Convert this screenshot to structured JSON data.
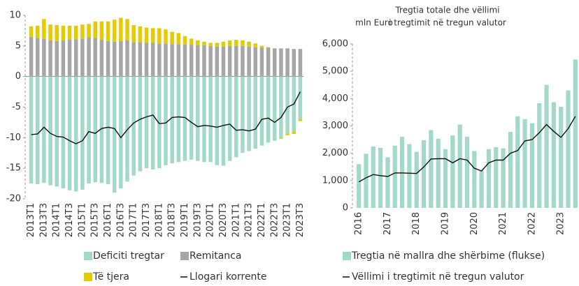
{
  "chart_data": [
    {
      "type": "bar",
      "stacked": true,
      "categories": [
        "2013T1",
        null,
        "2013T3",
        null,
        "2014T1",
        null,
        "2014T3",
        null,
        "2015T1",
        null,
        "2015T3",
        null,
        "2016T1",
        null,
        "2016T3",
        null,
        "2017T1",
        null,
        "2017T3",
        null,
        "2018T1",
        null,
        "2018T3",
        null,
        "2019T1",
        null,
        "2019T3",
        null,
        "2020T1",
        null,
        "2020T3",
        null,
        "2021T1",
        null,
        "2021T3",
        null,
        "2022T1",
        null,
        "2022T3",
        null,
        "2023T1",
        null,
        "2023T3"
      ],
      "ylim": [
        -20,
        10
      ],
      "yticks": [
        -20,
        -15,
        -10,
        -5,
        0,
        5,
        10
      ],
      "series": [
        {
          "name": "Deficiti tregtar",
          "color": "#a3d9c9",
          "values": [
            -17.5,
            -17.6,
            -17.4,
            -17.8,
            -18.0,
            -18.3,
            -18.6,
            -18.8,
            -18.5,
            -17.5,
            -17.3,
            -17.4,
            -17.6,
            -19.0,
            -18.3,
            -17.2,
            -16.2,
            -15.5,
            -15.0,
            -15.2,
            -15.0,
            -14.5,
            -14.2,
            -14.0,
            -13.8,
            -13.6,
            -13.8,
            -14.0,
            -14.0,
            -14.5,
            -14.6,
            -13.8,
            -13.2,
            -12.5,
            -12.2,
            -11.8,
            -11.3,
            -10.8,
            -10.5,
            -10.0,
            -9.3,
            -9.0,
            -7.0
          ]
        },
        {
          "name": "Remitanca",
          "color": "#a6a6a6",
          "values": [
            6.5,
            6.3,
            6.2,
            5.9,
            5.8,
            5.9,
            6.0,
            6.1,
            6.2,
            6.4,
            6.3,
            6.0,
            5.8,
            5.7,
            5.8,
            5.9,
            5.6,
            5.6,
            5.5,
            5.5,
            5.4,
            5.4,
            5.3,
            5.3,
            5.2,
            5.2,
            5.1,
            5.1,
            5.0,
            4.9,
            4.9,
            5.0,
            5.0,
            5.0,
            4.9,
            4.8,
            4.7,
            4.7,
            4.6,
            4.6,
            4.6,
            4.5,
            4.5
          ]
        },
        {
          "name": "Të tjera",
          "color": "#e3cc00",
          "values": [
            1.7,
            2.0,
            3.2,
            2.6,
            2.6,
            2.4,
            2.3,
            2.2,
            2.3,
            2.2,
            2.7,
            3.0,
            3.2,
            3.6,
            3.8,
            3.5,
            2.8,
            2.6,
            2.5,
            2.4,
            2.5,
            2.3,
            2.0,
            1.8,
            1.4,
            1.0,
            0.8,
            0.6,
            0.5,
            0.6,
            0.8,
            0.9,
            1.0,
            0.9,
            0.8,
            0.6,
            0.3,
            0.1,
            0.0,
            -0.2,
            -0.3,
            -0.4,
            -0.3
          ]
        },
        {
          "name": "Llogari korrente",
          "type": "line",
          "color": "#111111",
          "values": [
            -9.5,
            -9.4,
            -8.3,
            -9.3,
            -9.8,
            -9.9,
            -10.5,
            -11.0,
            -10.5,
            -9.0,
            -9.3,
            -8.5,
            -8.3,
            -8.5,
            -10.0,
            -8.7,
            -7.6,
            -7.0,
            -6.6,
            -6.3,
            -7.7,
            -7.6,
            -6.7,
            -6.6,
            -6.7,
            -7.5,
            -8.2,
            -8.0,
            -8.1,
            -8.3,
            -8.0,
            -7.8,
            -8.8,
            -8.7,
            -8.9,
            -8.6,
            -7.0,
            -6.8,
            -7.5,
            -6.7,
            -5.0,
            -4.5,
            -2.5
          ]
        }
      ]
    },
    {
      "type": "bar",
      "title": [
        "Tregtia totale dhe vëllimi",
        "i tregtimit në tregun valutor"
      ],
      "y_label": "mln Euro",
      "categories": [
        "2016",
        null,
        null,
        null,
        "2017",
        null,
        null,
        null,
        "2018",
        null,
        null,
        null,
        "2019",
        null,
        null,
        null,
        "2020",
        null,
        null,
        null,
        "2021",
        null,
        null,
        null,
        "2022",
        null,
        null,
        null,
        "2023",
        null,
        null
      ],
      "ylim": [
        0,
        6000
      ],
      "yticks": [
        0,
        {
          "value": 1000,
          "label": "1,000"
        },
        {
          "value": 2000,
          "label": "2,000"
        },
        {
          "value": 3000,
          "label": "3,000"
        },
        {
          "value": 4000,
          "label": "4,000"
        },
        {
          "value": 5000,
          "label": "5,000"
        },
        {
          "value": 6000,
          "label": "6,000"
        }
      ],
      "series": [
        {
          "name": "Tregtia në mallra dhe shërbime (flukse)",
          "color": "#a3d9c9",
          "values": [
            1600,
            1980,
            2250,
            2200,
            1850,
            2280,
            2600,
            2330,
            2050,
            2480,
            2850,
            2530,
            2150,
            2650,
            3050,
            2600,
            2080,
            1380,
            2150,
            2220,
            2180,
            2780,
            3350,
            3250,
            3100,
            3830,
            4500,
            3870,
            3700,
            4300,
            5430
          ]
        },
        {
          "name": "Vëllimi i tregtimit në tregun valutor",
          "type": "line",
          "color": "#111111",
          "values": [
            950,
            1100,
            1220,
            1180,
            1150,
            1280,
            1280,
            1270,
            1260,
            1500,
            1790,
            1800,
            1800,
            1650,
            1800,
            1750,
            1450,
            1350,
            1650,
            1750,
            1750,
            2000,
            2100,
            2450,
            2500,
            2750,
            3050,
            2800,
            2580,
            2900,
            3350
          ]
        }
      ]
    }
  ]
}
